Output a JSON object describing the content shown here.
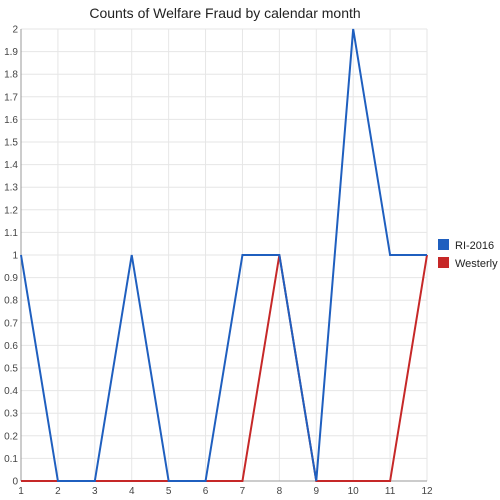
{
  "chart_data": {
    "type": "line",
    "title": "Counts of Welfare Fraud by calendar month",
    "xlabel": "",
    "ylabel": "",
    "x": [
      "1",
      "2",
      "3",
      "4",
      "5",
      "6",
      "7",
      "8",
      "9",
      "10",
      "11",
      "12"
    ],
    "ylim": [
      0,
      2
    ],
    "yticks": [
      "0",
      "0.1",
      "0.2",
      "0.3",
      "0.4",
      "0.5",
      "0.6",
      "0.7",
      "0.8",
      "0.9",
      "1",
      "1.1",
      "1.2",
      "1.3",
      "1.4",
      "1.5",
      "1.6",
      "1.7",
      "1.8",
      "1.9",
      "2"
    ],
    "grid": true,
    "legend_position": "right",
    "series": [
      {
        "name": "RI-2016",
        "color": "#1f5fbf",
        "values": [
          1,
          0,
          0,
          1,
          0,
          0,
          1,
          1,
          0,
          2,
          1,
          1
        ]
      },
      {
        "name": "Westerly",
        "color": "#c62828",
        "values": [
          0,
          0,
          0,
          0,
          0,
          0,
          0,
          1,
          0,
          0,
          0,
          1
        ]
      }
    ]
  }
}
